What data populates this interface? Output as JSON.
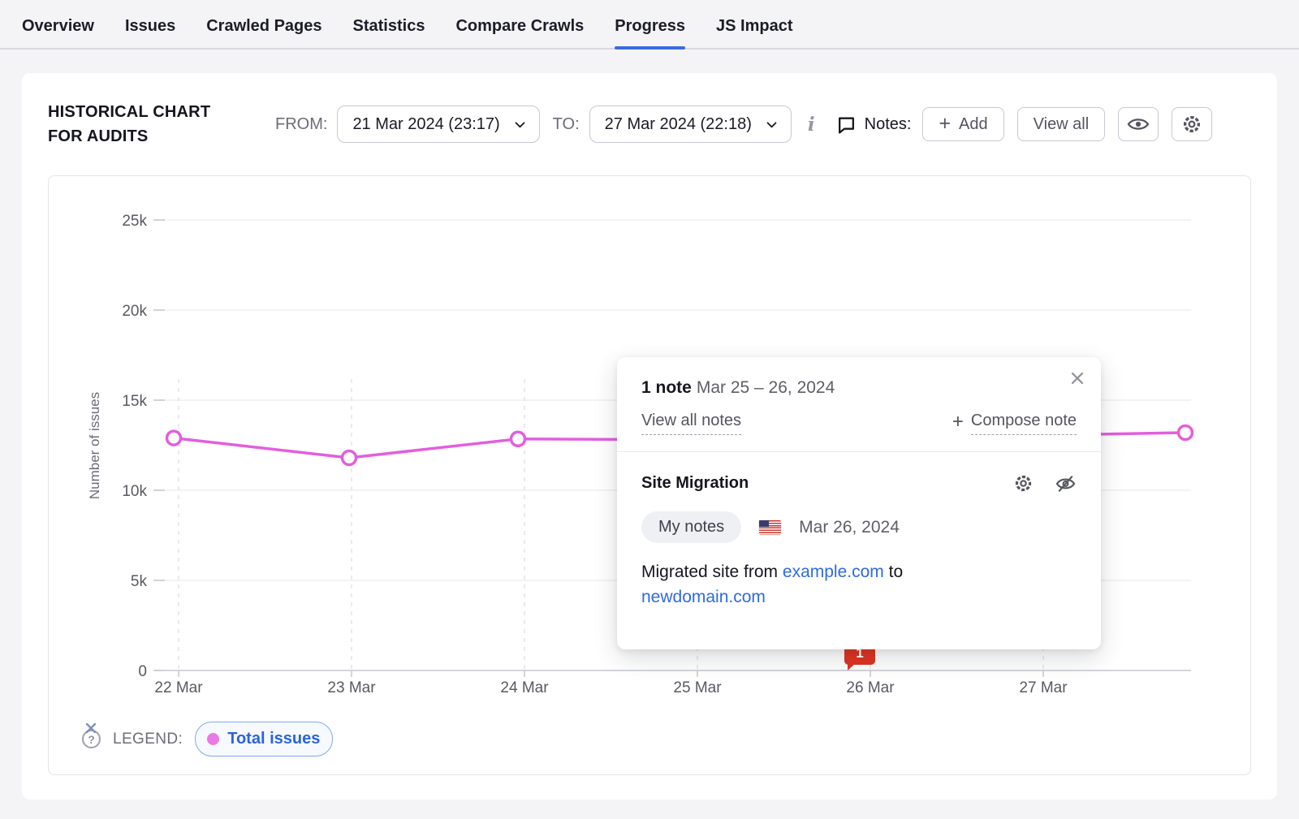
{
  "tabs": {
    "items": [
      {
        "label": "Overview",
        "active": false
      },
      {
        "label": "Issues",
        "active": false
      },
      {
        "label": "Crawled Pages",
        "active": false
      },
      {
        "label": "Statistics",
        "active": false
      },
      {
        "label": "Compare Crawls",
        "active": false
      },
      {
        "label": "Progress",
        "active": true
      },
      {
        "label": "JS Impact",
        "active": false
      }
    ]
  },
  "header": {
    "title_line1": "HISTORICAL CHART",
    "title_line2": "FOR AUDITS",
    "from_label": "FROM:",
    "from_value": "21 Mar 2024 (23:17)",
    "to_label": "TO:",
    "to_value": "27 Mar 2024 (22:18)",
    "notes_label": "Notes:",
    "add_plus": "+",
    "add_label": "Add",
    "view_all_label": "View all"
  },
  "chart_data": {
    "type": "line",
    "title": "Historical chart for audits",
    "xlabel": "",
    "ylabel": "Number of issues",
    "ylim": [
      0,
      25000
    ],
    "grid": "horizontal solid, vertical dashed",
    "legend_position": "bottom-left",
    "y_ticks": [
      {
        "label": "25k",
        "value": 25000
      },
      {
        "label": "20k",
        "value": 20000
      },
      {
        "label": "15k",
        "value": 15000
      },
      {
        "label": "10k",
        "value": 10000
      },
      {
        "label": "5k",
        "value": 5000
      },
      {
        "label": "0",
        "value": 0
      }
    ],
    "x_categories": [
      "22 Mar",
      "23 Mar",
      "24 Mar",
      "25 Mar",
      "26 Mar",
      "27 Mar"
    ],
    "series": [
      {
        "name": "Total issues",
        "color": "#e25fdd",
        "points": [
          {
            "x": "22 Mar",
            "value": 12900
          },
          {
            "x": "23 Mar",
            "value": 11800
          },
          {
            "x": "24 Mar",
            "value": 12850
          },
          {
            "x": "25 Mar",
            "value": 12800,
            "occluded_by_note_popup": true
          },
          {
            "x": "26 Mar",
            "value": 12850,
            "occluded_by_note_popup": true
          },
          {
            "x": "27 Mar",
            "value": 13050,
            "occluded_by_note_popup": true
          },
          {
            "x": "27 Mar 22:18 (axis end)",
            "value": 13200
          }
        ]
      }
    ],
    "note_marker": {
      "label": "1",
      "date": "26 Mar",
      "color": "#e03422"
    }
  },
  "legend": {
    "label": "LEGEND:",
    "help_glyph": "?"
  },
  "popup": {
    "count_title": "1 note",
    "date_range": "Mar 25 – 26, 2024",
    "view_all_label": "View all notes",
    "compose_plus": "+",
    "compose_label": "Compose note",
    "note": {
      "title": "Site Migration",
      "badge": "My notes",
      "date": "Mar 26, 2024",
      "body_prefix": "Migrated site from ",
      "link1": "example.com",
      "body_middle": " to",
      "link2": "newdomain.com"
    }
  }
}
